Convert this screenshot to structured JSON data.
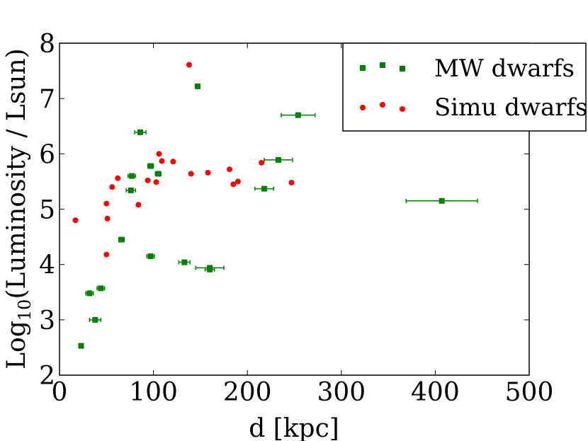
{
  "chart_data": {
    "type": "scatter",
    "xlabel": "d [kpc]",
    "ylabel_base": "Log",
    "ylabel_sub": "10",
    "ylabel_rest": "(Luminosity / Lsun)",
    "xlim": [
      0,
      500
    ],
    "ylim": [
      2,
      8
    ],
    "xticks": [
      0,
      100,
      200,
      300,
      400,
      500
    ],
    "yticks": [
      2,
      3,
      4,
      5,
      6,
      7,
      8
    ],
    "xtick_labels": [
      "0",
      "100",
      "200",
      "300",
      "400",
      "500"
    ],
    "ytick_labels": [
      "2",
      "3",
      "4",
      "5",
      "6",
      "7",
      "8"
    ],
    "grid": false,
    "legend_position": "top-right",
    "series": [
      {
        "name": "MW dwarfs",
        "marker": "square",
        "color": "#008000",
        "points": [
          {
            "x": 23,
            "y": 2.53,
            "xerr": 2
          },
          {
            "x": 32,
            "y": 3.48,
            "xerr": 4
          },
          {
            "x": 38,
            "y": 3.0,
            "xerr": 6
          },
          {
            "x": 44,
            "y": 3.57,
            "xerr": 4
          },
          {
            "x": 66,
            "y": 4.45,
            "xerr": 3
          },
          {
            "x": 76,
            "y": 5.34,
            "xerr": 5
          },
          {
            "x": 77,
            "y": 5.6,
            "xerr": 4
          },
          {
            "x": 86,
            "y": 6.39,
            "xerr": 6
          },
          {
            "x": 97,
            "y": 5.78,
            "xerr": 3
          },
          {
            "x": 97,
            "y": 4.15,
            "xerr": 4
          },
          {
            "x": 105,
            "y": 5.64,
            "xerr": 3
          },
          {
            "x": 133,
            "y": 4.04,
            "xerr": 6
          },
          {
            "x": 147,
            "y": 7.22,
            "xerr": 2
          },
          {
            "x": 160,
            "y": 3.94,
            "xerr": 15
          },
          {
            "x": 160,
            "y": 3.91,
            "xerr": 5
          },
          {
            "x": 218,
            "y": 5.37,
            "xerr": 10
          },
          {
            "x": 233,
            "y": 5.89,
            "xerr": 15
          },
          {
            "x": 254,
            "y": 6.7,
            "xerr": 18
          },
          {
            "x": 407,
            "y": 5.15,
            "xerr": 38
          }
        ]
      },
      {
        "name": "Simu dwarfs",
        "marker": "circle",
        "color": "#ff0000",
        "points": [
          {
            "x": 17,
            "y": 4.8
          },
          {
            "x": 50,
            "y": 4.18
          },
          {
            "x": 50,
            "y": 5.1
          },
          {
            "x": 51,
            "y": 4.83
          },
          {
            "x": 56,
            "y": 5.4
          },
          {
            "x": 62,
            "y": 5.56
          },
          {
            "x": 84,
            "y": 5.08
          },
          {
            "x": 94,
            "y": 5.52
          },
          {
            "x": 103,
            "y": 5.49
          },
          {
            "x": 106,
            "y": 6.0
          },
          {
            "x": 109,
            "y": 5.87
          },
          {
            "x": 121,
            "y": 5.86
          },
          {
            "x": 138,
            "y": 7.61
          },
          {
            "x": 140,
            "y": 5.64
          },
          {
            "x": 158,
            "y": 5.66
          },
          {
            "x": 181,
            "y": 5.72
          },
          {
            "x": 185,
            "y": 5.45
          },
          {
            "x": 190,
            "y": 5.5
          },
          {
            "x": 215,
            "y": 5.84
          },
          {
            "x": 247,
            "y": 5.48
          }
        ]
      }
    ]
  }
}
